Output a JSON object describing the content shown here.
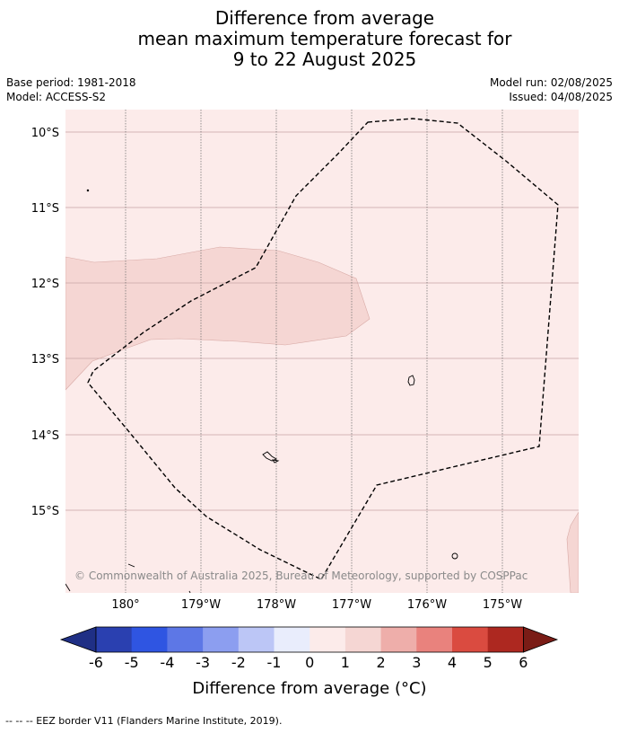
{
  "title": {
    "line1": "Difference from average",
    "line2": "mean maximum temperature forecast for",
    "line3": "9 to 22 August 2025"
  },
  "info_left": {
    "base_period": "Base period: 1981-2018",
    "model": "Model: ACCESS-S2"
  },
  "info_right": {
    "model_run": "Model run: 02/08/2025",
    "issued": "Issued: 04/08/2025"
  },
  "map": {
    "lat_labels": [
      "10°S",
      "11°S",
      "12°S",
      "13°S",
      "14°S",
      "15°S"
    ],
    "lon_labels": [
      "180°",
      "179°W",
      "178°W",
      "177°W",
      "176°W",
      "175°W"
    ],
    "background_color": "#fcebea",
    "warm_region_color": "#f5d6d3",
    "copyright": "© Commonwealth of Australia 2025, Bureau of Meteorology, supported by COSPPac"
  },
  "colorbar": {
    "ticks": [
      "-6",
      "-5",
      "-4",
      "-3",
      "-2",
      "-1",
      "0",
      "1",
      "2",
      "3",
      "4",
      "5",
      "6"
    ],
    "colors": [
      "#2a40b0",
      "#2f55e2",
      "#5d77e6",
      "#8c9ef0",
      "#bcc6f6",
      "#e9edfc",
      "#fcebea",
      "#f5d6d3",
      "#eeaeaa",
      "#e9827d",
      "#da4b40",
      "#ad2820"
    ],
    "under_color": "#1f2f85",
    "over_color": "#7a1c16",
    "label": "Difference from average (°C)"
  },
  "legend_note": "--  --  -- EEZ border V11 (Flanders Marine Institute, 2019)."
}
